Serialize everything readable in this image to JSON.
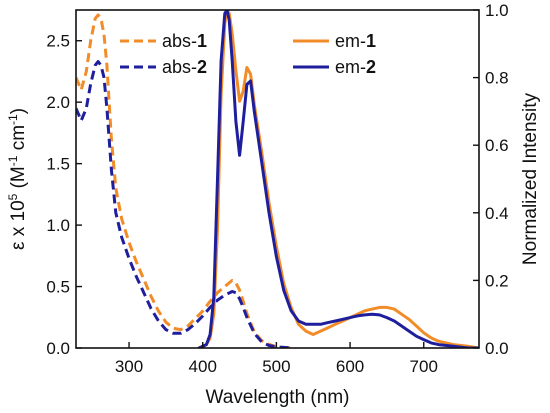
{
  "chart_data": {
    "type": "line",
    "xlabel": "Wavelength (nm)",
    "ylabel_left": {
      "prefix": "ε x 10",
      "exp": "5",
      "mid": " (M",
      "exp2": "-1",
      "mid2": " cm",
      "exp3": "-1",
      "suffix": ")"
    },
    "ylabel_right": "Normalized Intensity",
    "xlim": [
      228,
      775
    ],
    "ylim_left": [
      0,
      2.75
    ],
    "ylim_right": [
      0,
      1.0
    ],
    "x_ticks": [
      300,
      400,
      500,
      600,
      700
    ],
    "y_left_ticks": [
      "0.0",
      "0.5",
      "1.0",
      "1.5",
      "2.0",
      "2.5"
    ],
    "y_right_ticks": [
      "0.0",
      "0.2",
      "0.4",
      "0.6",
      "0.8",
      "1.0"
    ],
    "grid": false,
    "legend": [
      {
        "label": "abs-",
        "num": "1",
        "style": "dashed",
        "color": "#f28c28"
      },
      {
        "label": "abs-",
        "num": "2",
        "style": "dashed",
        "color": "#1f1f9e"
      },
      {
        "label": "em-",
        "num": "1",
        "style": "solid",
        "color": "#f28c28"
      },
      {
        "label": "em-",
        "num": "2",
        "style": "solid",
        "color": "#1f1f9e"
      }
    ],
    "series": [
      {
        "name": "abs-1",
        "axis": "left",
        "style": "dashed",
        "color": "#f28c28",
        "x": [
          228,
          235,
          242,
          248,
          254,
          258,
          262,
          266,
          270,
          276,
          282,
          290,
          300,
          310,
          320,
          330,
          340,
          350,
          360,
          370,
          380,
          390,
          400,
          410,
          420,
          430,
          440,
          445,
          450,
          455,
          460,
          470,
          480,
          490,
          500,
          520
        ],
        "y": [
          2.2,
          2.1,
          2.25,
          2.5,
          2.68,
          2.71,
          2.68,
          2.55,
          2.3,
          1.7,
          1.3,
          1.05,
          0.86,
          0.7,
          0.56,
          0.42,
          0.3,
          0.21,
          0.16,
          0.15,
          0.18,
          0.24,
          0.3,
          0.38,
          0.45,
          0.5,
          0.55,
          0.53,
          0.47,
          0.38,
          0.28,
          0.13,
          0.06,
          0.03,
          0.01,
          0.0
        ]
      },
      {
        "name": "abs-2",
        "axis": "left",
        "style": "dashed",
        "color": "#1f1f9e",
        "x": [
          228,
          235,
          242,
          248,
          254,
          258,
          262,
          266,
          270,
          276,
          282,
          290,
          300,
          310,
          320,
          330,
          340,
          350,
          360,
          370,
          380,
          390,
          400,
          410,
          420,
          430,
          440,
          445,
          450,
          455,
          460,
          470,
          480,
          490,
          500,
          520
        ],
        "y": [
          1.95,
          1.85,
          1.95,
          2.15,
          2.3,
          2.33,
          2.3,
          2.2,
          1.95,
          1.45,
          1.1,
          0.9,
          0.73,
          0.58,
          0.45,
          0.32,
          0.22,
          0.15,
          0.12,
          0.12,
          0.15,
          0.2,
          0.26,
          0.33,
          0.39,
          0.43,
          0.46,
          0.45,
          0.4,
          0.33,
          0.25,
          0.12,
          0.05,
          0.02,
          0.01,
          0.0
        ]
      },
      {
        "name": "em-1",
        "axis": "right",
        "style": "solid",
        "color": "#f28c28",
        "x": [
          395,
          405,
          410,
          415,
          420,
          425,
          430,
          433,
          436,
          440,
          445,
          450,
          455,
          460,
          465,
          470,
          480,
          490,
          500,
          510,
          520,
          530,
          540,
          550,
          560,
          570,
          580,
          590,
          600,
          610,
          620,
          630,
          640,
          650,
          660,
          670,
          680,
          690,
          700,
          710,
          720,
          740,
          760,
          775
        ],
        "y": [
          0.0,
          0.01,
          0.03,
          0.1,
          0.35,
          0.75,
          0.96,
          1.0,
          0.99,
          0.93,
          0.82,
          0.73,
          0.76,
          0.83,
          0.81,
          0.72,
          0.58,
          0.43,
          0.3,
          0.19,
          0.12,
          0.07,
          0.05,
          0.04,
          0.05,
          0.06,
          0.07,
          0.08,
          0.09,
          0.1,
          0.11,
          0.115,
          0.12,
          0.12,
          0.115,
          0.1,
          0.085,
          0.065,
          0.045,
          0.03,
          0.02,
          0.01,
          0.005,
          0.0
        ]
      },
      {
        "name": "em-2",
        "axis": "right",
        "style": "solid",
        "color": "#1f1f9e",
        "x": [
          395,
          405,
          410,
          415,
          420,
          425,
          430,
          433,
          436,
          440,
          445,
          450,
          455,
          460,
          465,
          470,
          480,
          490,
          500,
          510,
          520,
          530,
          540,
          550,
          560,
          570,
          580,
          590,
          600,
          610,
          620,
          630,
          640,
          650,
          660,
          670,
          680,
          690,
          700,
          710,
          720,
          740,
          760,
          775
        ],
        "y": [
          0.0,
          0.01,
          0.04,
          0.15,
          0.5,
          0.85,
          0.99,
          1.0,
          0.97,
          0.85,
          0.67,
          0.57,
          0.67,
          0.78,
          0.79,
          0.7,
          0.55,
          0.4,
          0.27,
          0.17,
          0.11,
          0.08,
          0.07,
          0.07,
          0.07,
          0.075,
          0.08,
          0.085,
          0.09,
          0.095,
          0.098,
          0.1,
          0.098,
          0.09,
          0.08,
          0.065,
          0.05,
          0.035,
          0.025,
          0.015,
          0.01,
          0.005,
          0.0,
          0.0
        ]
      }
    ]
  }
}
